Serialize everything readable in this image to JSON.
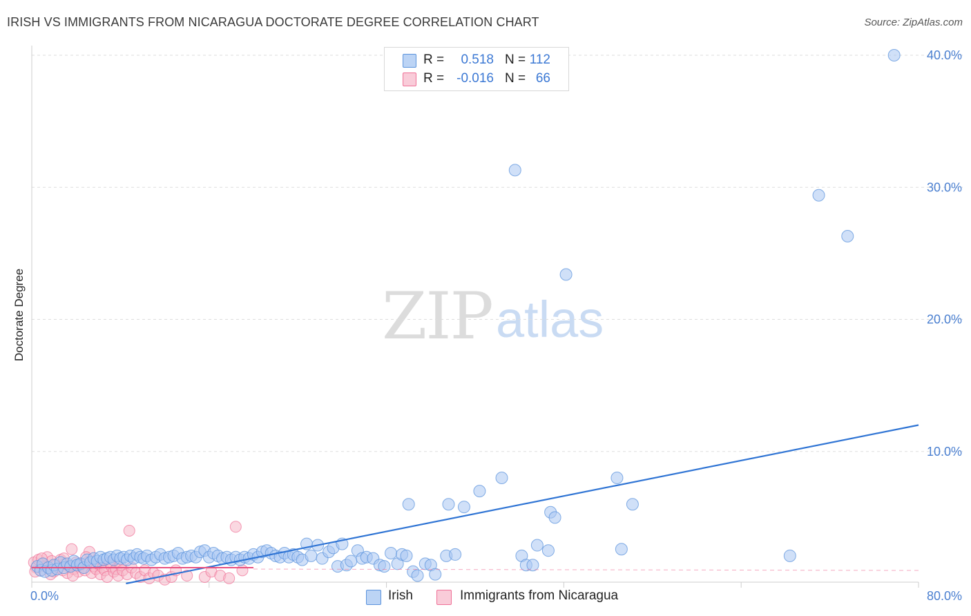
{
  "header": {
    "title": "IRISH VS IMMIGRANTS FROM NICARAGUA DOCTORATE DEGREE CORRELATION CHART",
    "source": "Source: ZipAtlas.com"
  },
  "watermark": {
    "zip": "ZIP",
    "atlas": "atlas"
  },
  "legend": {
    "rows": [
      {
        "r_label": "R =",
        "r_value": "0.518",
        "n_label": "N =",
        "n_value": "112",
        "color": "#a9c6f2"
      },
      {
        "r_label": "R =",
        "r_value": "-0.016",
        "n_label": "N =",
        "n_value": "66",
        "color": "#f6b8c9"
      }
    ]
  },
  "bottom_legend": {
    "series1": "Irish",
    "series2": "Immigrants from Nicaragua"
  },
  "colors": {
    "irish": "#5b93dc",
    "irish_fill": "#a9c6f2",
    "nic": "#ef6f96",
    "nic_fill": "#f6b8c9",
    "irish_line": "#2f74d4",
    "nic_line": "#e8507f"
  },
  "chart_data": {
    "type": "scatter",
    "title": "IRISH VS IMMIGRANTS FROM NICARAGUA DOCTORATE DEGREE CORRELATION CHART",
    "xlabel": "",
    "ylabel": "Doctorate Degree",
    "xlim": [
      0,
      80
    ],
    "ylim": [
      0,
      42
    ],
    "x_tick_labels": [
      "0.0%",
      "80.0%"
    ],
    "y_ticks": [
      10,
      20,
      30,
      40
    ],
    "y_tick_labels": [
      "10.0%",
      "20.0%",
      "30.0%",
      "40.0%"
    ],
    "grid": true,
    "series": [
      {
        "name": "Irish",
        "trend": {
          "x": [
            8.5,
            80
          ],
          "y": [
            0,
            12.0
          ]
        },
        "points": [
          [
            0.5,
            1.3
          ],
          [
            0.8,
            1.0
          ],
          [
            1.0,
            1.5
          ],
          [
            1.2,
            0.9
          ],
          [
            1.5,
            1.2
          ],
          [
            1.8,
            1.0
          ],
          [
            2.0,
            1.4
          ],
          [
            2.3,
            1.1
          ],
          [
            2.6,
            1.6
          ],
          [
            2.9,
            1.2
          ],
          [
            3.2,
            1.5
          ],
          [
            3.5,
            1.3
          ],
          [
            3.8,
            1.7
          ],
          [
            4.1,
            1.4
          ],
          [
            4.4,
            1.5
          ],
          [
            4.7,
            1.2
          ],
          [
            5.0,
            1.8
          ],
          [
            5.3,
            1.6
          ],
          [
            5.6,
            1.9
          ],
          [
            5.9,
            1.7
          ],
          [
            6.2,
            2.0
          ],
          [
            6.5,
            1.8
          ],
          [
            6.8,
            1.9
          ],
          [
            7.1,
            2.0
          ],
          [
            7.4,
            1.8
          ],
          [
            7.7,
            2.1
          ],
          [
            8.0,
            1.9
          ],
          [
            8.3,
            2.0
          ],
          [
            8.6,
            1.8
          ],
          [
            8.9,
            2.1
          ],
          [
            9.2,
            1.9
          ],
          [
            9.5,
            2.2
          ],
          [
            9.8,
            2.0
          ],
          [
            10.1,
            1.9
          ],
          [
            10.4,
            2.1
          ],
          [
            10.8,
            1.8
          ],
          [
            11.2,
            2.0
          ],
          [
            11.6,
            2.2
          ],
          [
            12.0,
            1.9
          ],
          [
            12.4,
            2.0
          ],
          [
            12.8,
            2.1
          ],
          [
            13.2,
            2.3
          ],
          [
            13.6,
            1.9
          ],
          [
            14.0,
            2.0
          ],
          [
            14.4,
            2.1
          ],
          [
            14.8,
            2.0
          ],
          [
            15.2,
            2.4
          ],
          [
            15.6,
            2.5
          ],
          [
            16.0,
            2.0
          ],
          [
            16.4,
            2.3
          ],
          [
            16.8,
            2.1
          ],
          [
            17.2,
            1.9
          ],
          [
            17.6,
            2.0
          ],
          [
            18.0,
            1.8
          ],
          [
            18.4,
            2.0
          ],
          [
            18.8,
            1.8
          ],
          [
            19.2,
            2.0
          ],
          [
            19.6,
            1.9
          ],
          [
            20.0,
            2.2
          ],
          [
            20.4,
            2.0
          ],
          [
            20.8,
            2.4
          ],
          [
            21.2,
            2.5
          ],
          [
            21.6,
            2.3
          ],
          [
            22.0,
            2.1
          ],
          [
            22.4,
            2.0
          ],
          [
            22.8,
            2.3
          ],
          [
            23.2,
            2.0
          ],
          [
            23.6,
            2.2
          ],
          [
            24.0,
            2.0
          ],
          [
            24.4,
            1.8
          ],
          [
            24.8,
            3.0
          ],
          [
            25.2,
            2.1
          ],
          [
            25.8,
            2.9
          ],
          [
            26.2,
            1.9
          ],
          [
            26.8,
            2.4
          ],
          [
            27.2,
            2.7
          ],
          [
            27.6,
            1.3
          ],
          [
            28.0,
            3.0
          ],
          [
            28.4,
            1.4
          ],
          [
            28.8,
            1.7
          ],
          [
            29.4,
            2.5
          ],
          [
            29.8,
            1.9
          ],
          [
            30.2,
            2.0
          ],
          [
            30.8,
            1.9
          ],
          [
            31.4,
            1.4
          ],
          [
            31.8,
            1.3
          ],
          [
            32.4,
            2.3
          ],
          [
            33.0,
            1.5
          ],
          [
            33.4,
            2.2
          ],
          [
            33.8,
            2.1
          ],
          [
            34.0,
            6.0
          ],
          [
            34.4,
            0.9
          ],
          [
            34.8,
            0.6
          ],
          [
            35.5,
            1.5
          ],
          [
            36.0,
            1.4
          ],
          [
            36.4,
            0.7
          ],
          [
            37.4,
            2.1
          ],
          [
            37.6,
            6.0
          ],
          [
            38.2,
            2.2
          ],
          [
            39.0,
            5.8
          ],
          [
            40.4,
            7.0
          ],
          [
            42.4,
            8.0
          ],
          [
            43.6,
            31.3
          ],
          [
            44.2,
            2.1
          ],
          [
            44.6,
            1.4
          ],
          [
            45.2,
            1.4
          ],
          [
            45.6,
            2.9
          ],
          [
            46.6,
            2.5
          ],
          [
            46.8,
            5.4
          ],
          [
            47.2,
            5.0
          ],
          [
            48.2,
            23.4
          ],
          [
            52.8,
            8.0
          ],
          [
            53.2,
            2.6
          ],
          [
            54.2,
            6.0
          ],
          [
            68.4,
            2.1
          ],
          [
            71.0,
            29.4
          ],
          [
            73.6,
            26.3
          ],
          [
            77.8,
            40.0
          ]
        ]
      },
      {
        "name": "Immigrants from Nicaragua",
        "trend": {
          "x": [
            0,
            20
          ],
          "y": [
            1.2,
            1.2
          ]
        },
        "points": [
          [
            0.2,
            1.6
          ],
          [
            0.4,
            1.2
          ],
          [
            0.6,
            1.8
          ],
          [
            0.8,
            1.0
          ],
          [
            1.0,
            1.5
          ],
          [
            1.2,
            1.3
          ],
          [
            1.4,
            2.0
          ],
          [
            1.6,
            1.1
          ],
          [
            1.8,
            1.7
          ],
          [
            2.0,
            0.9
          ],
          [
            2.2,
            1.4
          ],
          [
            2.4,
            1.2
          ],
          [
            2.6,
            1.8
          ],
          [
            2.8,
            1.0
          ],
          [
            3.0,
            1.5
          ],
          [
            3.2,
            0.8
          ],
          [
            3.4,
            1.3
          ],
          [
            3.6,
            2.6
          ],
          [
            3.8,
            1.1
          ],
          [
            4.0,
            1.6
          ],
          [
            4.2,
            0.9
          ],
          [
            4.4,
            1.4
          ],
          [
            4.6,
            1.2
          ],
          [
            4.8,
            1.0
          ],
          [
            5.0,
            1.6
          ],
          [
            5.2,
            2.4
          ],
          [
            5.4,
            0.8
          ],
          [
            5.6,
            1.3
          ],
          [
            5.8,
            1.1
          ],
          [
            6.0,
            1.5
          ],
          [
            6.2,
            0.7
          ],
          [
            6.4,
            1.2
          ],
          [
            6.6,
            1.0
          ],
          [
            6.8,
            0.5
          ],
          [
            7.0,
            1.6
          ],
          [
            7.2,
            1.3
          ],
          [
            7.4,
            0.9
          ],
          [
            7.6,
            1.1
          ],
          [
            7.8,
            0.6
          ],
          [
            8.0,
            1.4
          ],
          [
            8.2,
            1.0
          ],
          [
            8.6,
            0.7
          ],
          [
            8.8,
            4.0
          ],
          [
            9.0,
            1.2
          ],
          [
            9.4,
            0.8
          ],
          [
            9.8,
            0.5
          ],
          [
            10.2,
            1.0
          ],
          [
            10.6,
            0.4
          ],
          [
            11.0,
            0.8
          ],
          [
            11.4,
            0.6
          ],
          [
            12.0,
            0.3
          ],
          [
            12.6,
            0.5
          ],
          [
            13.0,
            1.0
          ],
          [
            14.0,
            0.6
          ],
          [
            15.6,
            0.5
          ],
          [
            16.2,
            0.9
          ],
          [
            17.0,
            0.6
          ],
          [
            17.8,
            0.4
          ],
          [
            18.4,
            4.3
          ],
          [
            19.0,
            1.0
          ],
          [
            0.3,
            0.9
          ],
          [
            0.9,
            1.9
          ],
          [
            1.7,
            0.7
          ],
          [
            2.9,
            1.9
          ],
          [
            3.7,
            0.6
          ],
          [
            4.9,
            2.0
          ]
        ]
      }
    ]
  }
}
